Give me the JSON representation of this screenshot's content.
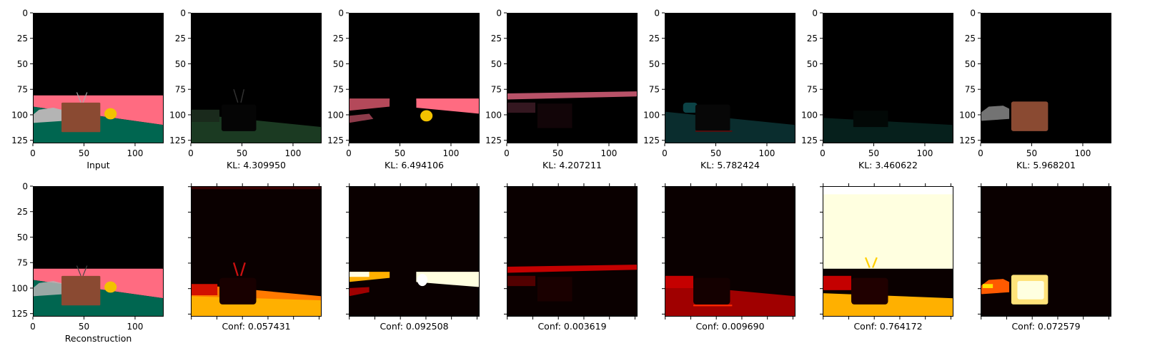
{
  "figure": {
    "grid": false,
    "image_size": 128,
    "axis_ticks": [
      0,
      50,
      100
    ],
    "y_axis_ticks": [
      0,
      25,
      50,
      75,
      100,
      125
    ]
  },
  "chart_data": [
    {
      "type": "image",
      "row": 0,
      "col": 0,
      "caption": "Input",
      "scene": "rgb-full",
      "x_ticks": true,
      "y_ticks": true,
      "xlim": [
        0,
        128
      ],
      "ylim": [
        128,
        0
      ]
    },
    {
      "type": "image",
      "row": 0,
      "col": 1,
      "caption": "KL: 4.309950",
      "scene": "slot-green",
      "x_ticks": true,
      "y_ticks": true,
      "xlim": [
        0,
        128
      ],
      "ylim": [
        128,
        0
      ]
    },
    {
      "type": "image",
      "row": 0,
      "col": 2,
      "caption": "KL: 6.494106",
      "scene": "slot-pink",
      "x_ticks": true,
      "y_ticks": true,
      "xlim": [
        0,
        128
      ],
      "ylim": [
        128,
        0
      ]
    },
    {
      "type": "image",
      "row": 0,
      "col": 3,
      "caption": "KL: 4.207211",
      "scene": "slot-stripe",
      "x_ticks": true,
      "y_ticks": true,
      "xlim": [
        0,
        128
      ],
      "ylim": [
        128,
        0
      ]
    },
    {
      "type": "image",
      "row": 0,
      "col": 4,
      "caption": "KL: 5.782424",
      "scene": "slot-teal",
      "x_ticks": true,
      "y_ticks": true,
      "xlim": [
        0,
        128
      ],
      "ylim": [
        128,
        0
      ]
    },
    {
      "type": "image",
      "row": 0,
      "col": 5,
      "caption": "KL: 3.460622",
      "scene": "slot-faint",
      "x_ticks": true,
      "y_ticks": true,
      "xlim": [
        0,
        128
      ],
      "ylim": [
        128,
        0
      ]
    },
    {
      "type": "image",
      "row": 0,
      "col": 6,
      "caption": "KL: 5.968201",
      "scene": "slot-box",
      "x_ticks": true,
      "y_ticks": true,
      "xlim": [
        0,
        128
      ],
      "ylim": [
        128,
        0
      ]
    },
    {
      "type": "image",
      "row": 1,
      "col": 0,
      "caption": "Reconstruction",
      "scene": "rgb-recon",
      "x_ticks": true,
      "y_ticks": true,
      "xlim": [
        0,
        128
      ],
      "ylim": [
        128,
        0
      ]
    },
    {
      "type": "heatmap",
      "row": 1,
      "col": 1,
      "caption": "Conf: 0.057431",
      "scene": "conf-ground",
      "colormap": "hot",
      "x_ticks": false,
      "y_ticks": false
    },
    {
      "type": "heatmap",
      "row": 1,
      "col": 2,
      "caption": "Conf: 0.092508",
      "scene": "conf-pink",
      "colormap": "hot",
      "x_ticks": false,
      "y_ticks": false
    },
    {
      "type": "heatmap",
      "row": 1,
      "col": 3,
      "caption": "Conf: 0.003619",
      "scene": "conf-stripe",
      "colormap": "hot",
      "x_ticks": false,
      "y_ticks": false
    },
    {
      "type": "heatmap",
      "row": 1,
      "col": 4,
      "caption": "Conf: 0.009690",
      "scene": "conf-teal",
      "colormap": "hot",
      "x_ticks": false,
      "y_ticks": false
    },
    {
      "type": "heatmap",
      "row": 1,
      "col": 5,
      "caption": "Conf: 0.764172",
      "scene": "conf-sky",
      "colormap": "hot",
      "x_ticks": false,
      "y_ticks": false
    },
    {
      "type": "heatmap",
      "row": 1,
      "col": 6,
      "caption": "Conf: 0.072579",
      "scene": "conf-box",
      "colormap": "hot",
      "x_ticks": false,
      "y_ticks": false
    }
  ],
  "colors": {
    "sky": "#000000",
    "wall_pink": "#ff6b81",
    "floor_green": "#006650",
    "box_brown": "#8a4a32",
    "yellow_obj": "#f2c200",
    "car_gray": "#b4b4b4",
    "dim_green": "#1b3a22",
    "dim_teal": "#0a2d2e",
    "dim_faint": "#06201c",
    "hot_dark": "#0a0000",
    "hot_red": "#c40000",
    "hot_orange": "#ff7a00",
    "hot_yellow": "#ffd200",
    "hot_white": "#ffffe0"
  }
}
